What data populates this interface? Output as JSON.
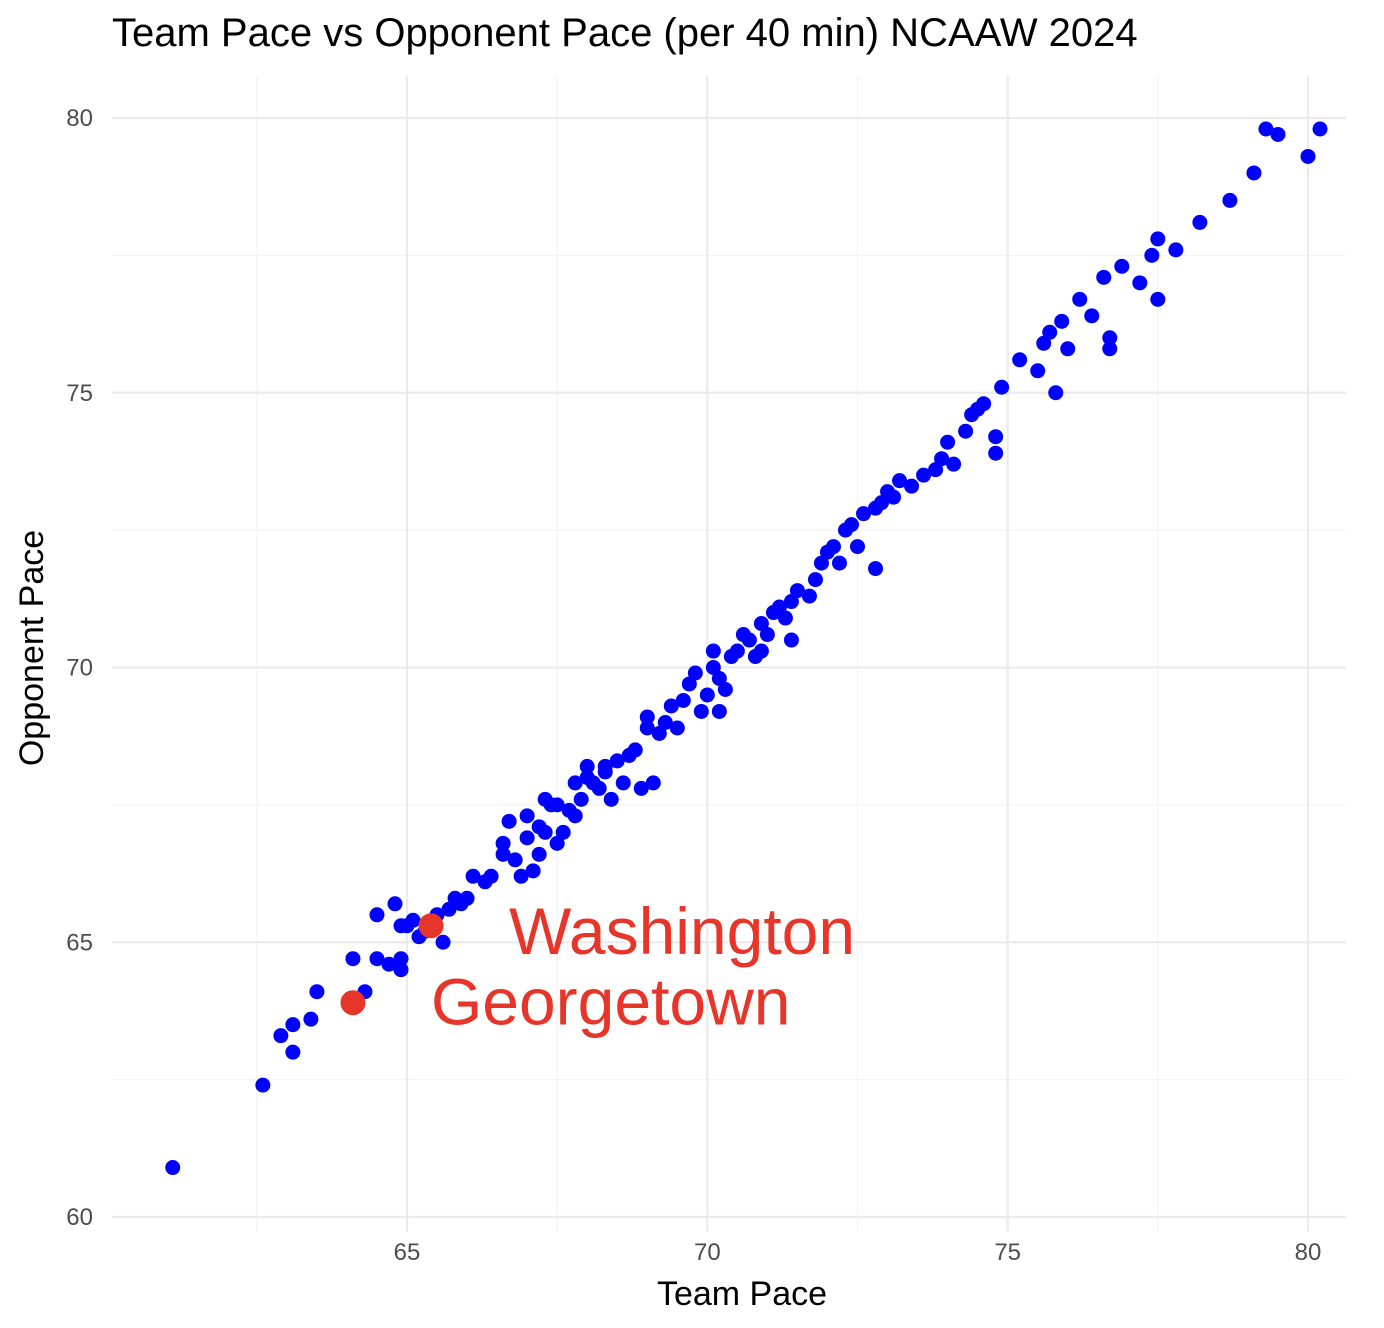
{
  "chart_data": {
    "type": "scatter",
    "title": "Team Pace vs Opponent Pace (per 40 min) NCAAW 2024",
    "xlabel": "Team Pace",
    "ylabel": "Opponent Pace",
    "xlim": [
      60.5,
      81.0
    ],
    "ylim": [
      59.8,
      80.4
    ],
    "x_ticks": [
      65,
      70,
      75,
      80
    ],
    "y_ticks": [
      60,
      65,
      70,
      75,
      80
    ],
    "x_tick_labels": [
      "65",
      "70",
      "75",
      "80"
    ],
    "y_tick_labels": [
      "60",
      "65",
      "70",
      "75",
      "80"
    ],
    "x_minor_ticks": [
      62.5,
      67.5,
      72.5,
      77.5
    ],
    "y_minor_ticks": [
      62.5,
      67.5,
      72.5,
      77.5
    ],
    "grid": true,
    "colors": {
      "points": "#0000ff",
      "highlight": "#e8352a",
      "grid": "#ebebeb"
    },
    "series": [
      {
        "points": [
          [
            61.1,
            60.9
          ],
          [
            62.6,
            62.4
          ],
          [
            62.9,
            63.3
          ],
          [
            63.1,
            63.0
          ],
          [
            63.1,
            63.5
          ],
          [
            63.4,
            63.6
          ],
          [
            63.5,
            64.1
          ],
          [
            64.1,
            64.7
          ],
          [
            64.3,
            64.1
          ],
          [
            64.5,
            64.7
          ],
          [
            64.5,
            65.5
          ],
          [
            64.7,
            64.6
          ],
          [
            64.8,
            65.7
          ],
          [
            64.9,
            65.3
          ],
          [
            64.9,
            64.7
          ],
          [
            64.9,
            64.5
          ],
          [
            65.1,
            65.4
          ],
          [
            65.2,
            65.1
          ],
          [
            65.3,
            65.2
          ],
          [
            65.5,
            65.5
          ],
          [
            65.6,
            65.0
          ],
          [
            65.7,
            65.6
          ],
          [
            65.8,
            65.8
          ],
          [
            65.9,
            65.7
          ],
          [
            66.0,
            65.8
          ],
          [
            66.1,
            66.2
          ],
          [
            66.3,
            66.1
          ],
          [
            66.4,
            66.2
          ],
          [
            66.6,
            66.8
          ],
          [
            66.6,
            66.6
          ],
          [
            66.7,
            67.2
          ],
          [
            66.9,
            66.2
          ],
          [
            67.0,
            66.9
          ],
          [
            67.1,
            66.3
          ],
          [
            67.2,
            66.6
          ],
          [
            67.2,
            67.1
          ],
          [
            67.3,
            67.0
          ],
          [
            67.3,
            67.6
          ],
          [
            67.4,
            67.5
          ],
          [
            67.5,
            66.8
          ],
          [
            67.6,
            67.0
          ],
          [
            67.7,
            67.4
          ],
          [
            67.8,
            67.3
          ],
          [
            67.8,
            67.9
          ],
          [
            67.9,
            67.6
          ],
          [
            68.0,
            68.0
          ],
          [
            68.1,
            67.9
          ],
          [
            68.2,
            67.8
          ],
          [
            68.3,
            68.2
          ],
          [
            68.4,
            67.6
          ],
          [
            68.5,
            68.3
          ],
          [
            68.6,
            67.9
          ],
          [
            68.7,
            68.4
          ],
          [
            68.8,
            68.5
          ],
          [
            68.9,
            67.8
          ],
          [
            69.0,
            68.9
          ],
          [
            69.2,
            68.8
          ],
          [
            69.3,
            69.0
          ],
          [
            69.4,
            69.3
          ],
          [
            69.5,
            68.9
          ],
          [
            69.6,
            69.4
          ],
          [
            69.7,
            69.7
          ],
          [
            69.9,
            69.2
          ],
          [
            70.0,
            69.5
          ],
          [
            70.1,
            70.0
          ],
          [
            70.2,
            69.8
          ],
          [
            70.3,
            69.6
          ],
          [
            70.4,
            70.2
          ],
          [
            70.5,
            70.3
          ],
          [
            70.6,
            70.6
          ],
          [
            70.8,
            70.2
          ],
          [
            70.9,
            70.8
          ],
          [
            71.0,
            70.6
          ],
          [
            71.1,
            71.0
          ],
          [
            71.2,
            71.1
          ],
          [
            71.3,
            70.9
          ],
          [
            71.5,
            71.4
          ],
          [
            71.7,
            71.3
          ],
          [
            71.8,
            71.6
          ],
          [
            71.9,
            71.9
          ],
          [
            72.1,
            72.2
          ],
          [
            72.2,
            71.9
          ],
          [
            72.3,
            72.5
          ],
          [
            72.4,
            72.6
          ],
          [
            72.5,
            72.2
          ],
          [
            72.6,
            72.8
          ],
          [
            72.8,
            72.9
          ],
          [
            72.9,
            73.0
          ],
          [
            73.1,
            73.1
          ],
          [
            73.2,
            73.4
          ],
          [
            73.4,
            73.3
          ],
          [
            73.6,
            73.5
          ],
          [
            73.8,
            73.6
          ],
          [
            73.9,
            73.8
          ],
          [
            74.0,
            74.1
          ],
          [
            74.1,
            73.7
          ],
          [
            74.3,
            74.3
          ],
          [
            74.4,
            74.6
          ],
          [
            74.6,
            74.8
          ],
          [
            74.8,
            74.2
          ],
          [
            74.9,
            75.1
          ],
          [
            75.2,
            75.6
          ],
          [
            75.5,
            75.4
          ],
          [
            75.6,
            75.9
          ],
          [
            75.7,
            76.1
          ],
          [
            75.9,
            76.3
          ],
          [
            76.0,
            75.8
          ],
          [
            76.2,
            76.7
          ],
          [
            76.4,
            76.4
          ],
          [
            76.6,
            77.1
          ],
          [
            76.7,
            76.0
          ],
          [
            76.9,
            77.3
          ],
          [
            77.2,
            77.0
          ],
          [
            77.4,
            77.5
          ],
          [
            77.5,
            77.8
          ],
          [
            77.8,
            77.6
          ],
          [
            78.2,
            78.1
          ],
          [
            78.7,
            78.5
          ],
          [
            79.1,
            79.0
          ],
          [
            79.3,
            79.8
          ],
          [
            79.5,
            79.7
          ],
          [
            80.0,
            79.3
          ],
          [
            80.2,
            79.8
          ],
          [
            65.0,
            65.3
          ],
          [
            66.8,
            66.5
          ],
          [
            67.0,
            67.3
          ],
          [
            67.5,
            67.5
          ],
          [
            68.0,
            68.2
          ],
          [
            68.3,
            68.1
          ],
          [
            69.0,
            69.1
          ],
          [
            69.8,
            69.9
          ],
          [
            70.1,
            70.3
          ],
          [
            70.7,
            70.5
          ],
          [
            71.4,
            71.2
          ],
          [
            72.0,
            72.1
          ],
          [
            73.0,
            73.2
          ],
          [
            74.5,
            74.7
          ],
          [
            69.1,
            67.9
          ],
          [
            70.2,
            69.2
          ],
          [
            70.9,
            70.3
          ],
          [
            71.4,
            70.5
          ],
          [
            72.8,
            71.8
          ],
          [
            74.8,
            73.9
          ],
          [
            75.8,
            75.0
          ],
          [
            76.7,
            75.8
          ],
          [
            77.5,
            76.7
          ]
        ]
      },
      {
        "points": [
          [
            64.1,
            63.9
          ],
          [
            65.4,
            65.3
          ]
        ],
        "labels": [
          "Georgetown",
          "Washington"
        ]
      }
    ]
  }
}
